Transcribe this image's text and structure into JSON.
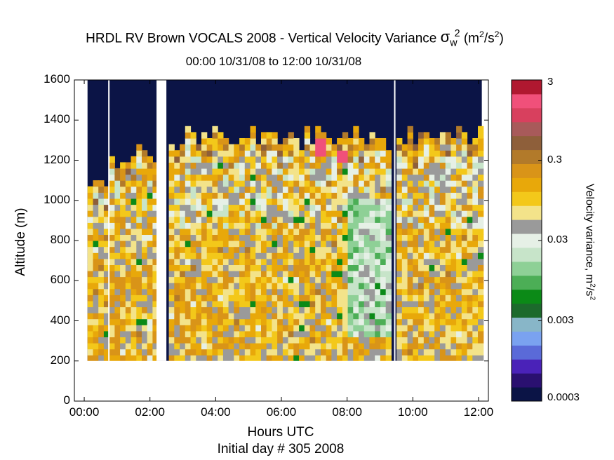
{
  "title_main": "HRDL RV Brown VOCALS 2008 - Vertical Velocity Variance",
  "title_symbol": "σ",
  "title_symbol_sub": "w",
  "title_symbol_sup": "2",
  "title_unit_open": "(m",
  "title_unit_sup1": "2",
  "title_unit_mid": "/s",
  "title_unit_sup2": "2",
  "title_unit_close": ")",
  "subtitle": "00:00 10/31/08 to 12:00 10/31/08",
  "xlabel": "Hours UTC",
  "note": "Initial day # 305  2008",
  "ylabel": "Altitude (m)",
  "cblabel_text": "Velocity variance, m",
  "cblabel_sup1": "2",
  "cblabel_mid": "/s",
  "cblabel_sup2": "2",
  "chart_data": {
    "type": "heatmap",
    "x_unit": "hours UTC",
    "y_unit": "m",
    "xlim": [
      -0.3,
      12.3
    ],
    "ylim": [
      0,
      1600
    ],
    "x_ticks": [
      0,
      2,
      4,
      6,
      8,
      10,
      12
    ],
    "x_tick_labels": [
      "00:00",
      "02:00",
      "04:00",
      "06:00",
      "08:00",
      "10:00",
      "12:00"
    ],
    "y_ticks": [
      0,
      200,
      400,
      600,
      800,
      1000,
      1200,
      1400,
      1600
    ],
    "y_tick_labels": [
      "0",
      "200",
      "400",
      "600",
      "800",
      "1000",
      "1200",
      "1400",
      "1600"
    ],
    "colorbar": {
      "scale": "log",
      "range": [
        0.0003,
        3
      ],
      "ticks": [
        0.0003,
        0.003,
        0.03,
        0.3,
        3
      ],
      "tick_labels": [
        "0.0003",
        "0.003",
        "0.03",
        "0.3",
        "3"
      ],
      "colors": [
        "#0b1446",
        "#2a1070",
        "#4a22b8",
        "#5a6ad8",
        "#7aa2f0",
        "#88b6c8",
        "#1c6a2c",
        "#0b8a17",
        "#4cae56",
        "#8ed096",
        "#c7e4c9",
        "#e6f0e6",
        "#9a9a9a",
        "#f3e38a",
        "#f3c81a",
        "#e8a80a",
        "#d99418",
        "#b27a2a",
        "#8e5f3a",
        "#a85a5a",
        "#d8405e",
        "#f0507a",
        "#b01830"
      ]
    },
    "data_coverage": [
      {
        "x": [
          0.1,
          0.75
        ],
        "top_m": 1100,
        "bottom_m": 200
      },
      {
        "x": [
          0.75,
          2.2
        ],
        "top_m": 1200,
        "bottom_m": 200
      },
      {
        "x": [
          2.5,
          9.4
        ],
        "top_m": 1300,
        "bottom_m": 200
      },
      {
        "x": [
          9.5,
          12.1
        ],
        "top_m": 1310,
        "bottom_m": 200
      }
    ],
    "gaps_hours": [
      [
        2.2,
        2.5
      ]
    ],
    "white_lines_hours": [
      0.75,
      9.45
    ],
    "low_variance_region": {
      "x": [
        8.0,
        9.4
      ],
      "y": [
        300,
        1000
      ],
      "approx_value": 0.02
    },
    "high_variance_spots": [
      {
        "x": 7.75,
        "y": 1210,
        "approx_value": 2
      },
      {
        "x": 7.1,
        "y": 1250,
        "approx_value": 1.5
      }
    ],
    "typical_value_below_1100m": 0.1
  }
}
